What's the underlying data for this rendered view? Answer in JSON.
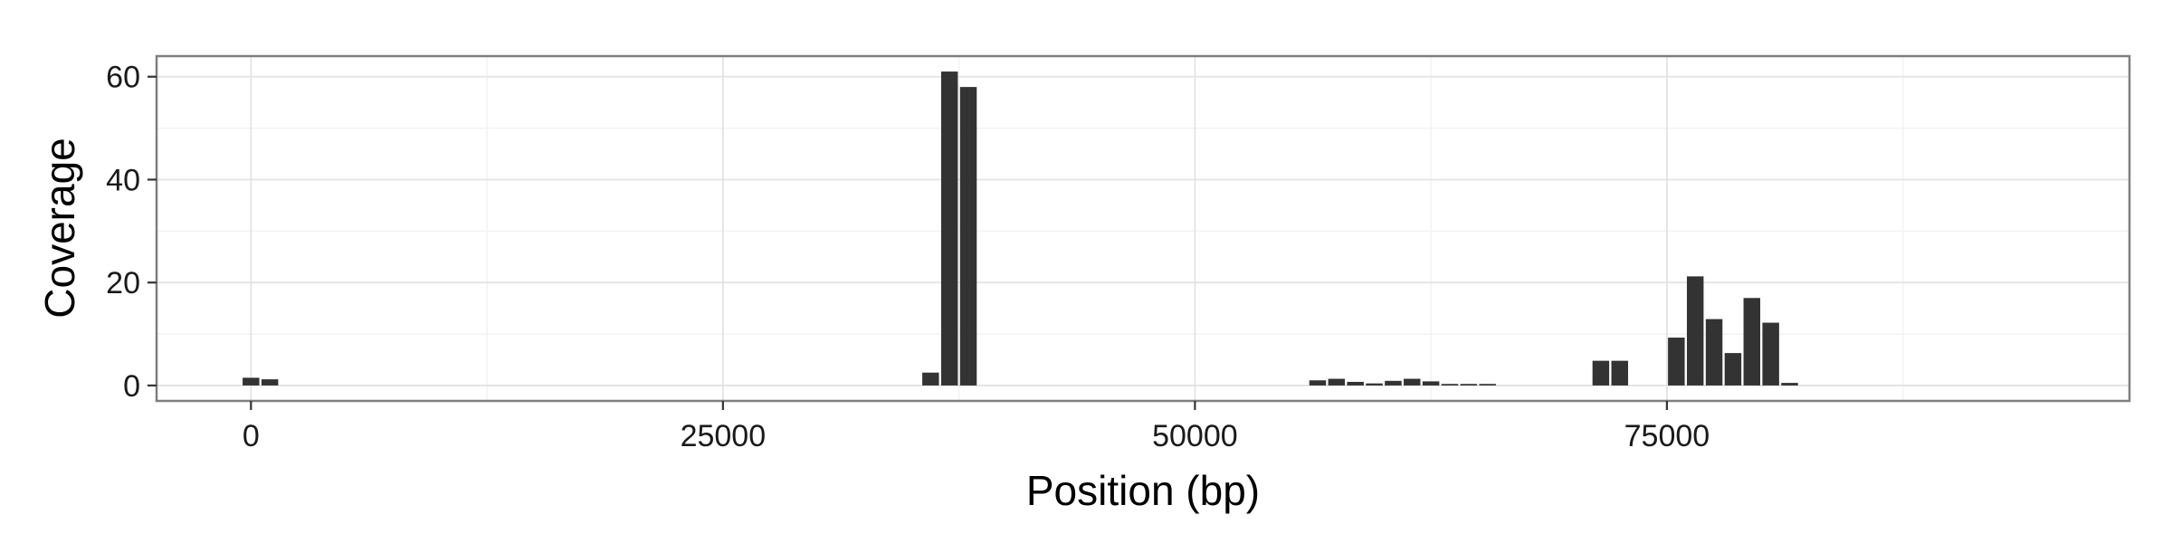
{
  "chart_data": {
    "type": "bar",
    "title": "",
    "xlabel": "Position (bp)",
    "ylabel": "Coverage",
    "xlim": [
      -5000,
      99500
    ],
    "ylim": [
      -3,
      64
    ],
    "x_ticks": [
      0,
      25000,
      50000,
      75000
    ],
    "x_tick_labels": [
      "0",
      "25000",
      "50000",
      "75000"
    ],
    "y_ticks": [
      0,
      20,
      40,
      60
    ],
    "y_tick_labels": [
      "0",
      "20",
      "40",
      "60"
    ],
    "bin_width": 1000,
    "grid": true,
    "legend": "none",
    "colors": {
      "bar": "#333333",
      "panel_background": "#ffffff",
      "panel_border": "#7f7f7f",
      "grid_major": "#e3e3e3",
      "grid_minor": "#f2f2f2"
    },
    "x": [
      0,
      1000,
      36000,
      37000,
      38000,
      56500,
      57500,
      58500,
      59500,
      60500,
      61500,
      62500,
      63500,
      64500,
      65500,
      71500,
      72500,
      75500,
      76500,
      77500,
      78500,
      79500,
      80500,
      81500
    ],
    "values": [
      1.5,
      1.2,
      2.5,
      61,
      58,
      1,
      1.3,
      0.7,
      0.4,
      0.9,
      1.3,
      0.8,
      0.3,
      0.3,
      0.3,
      4.8,
      4.8,
      9.3,
      21.2,
      12.9,
      6.3,
      17,
      12.2,
      0.5
    ]
  }
}
